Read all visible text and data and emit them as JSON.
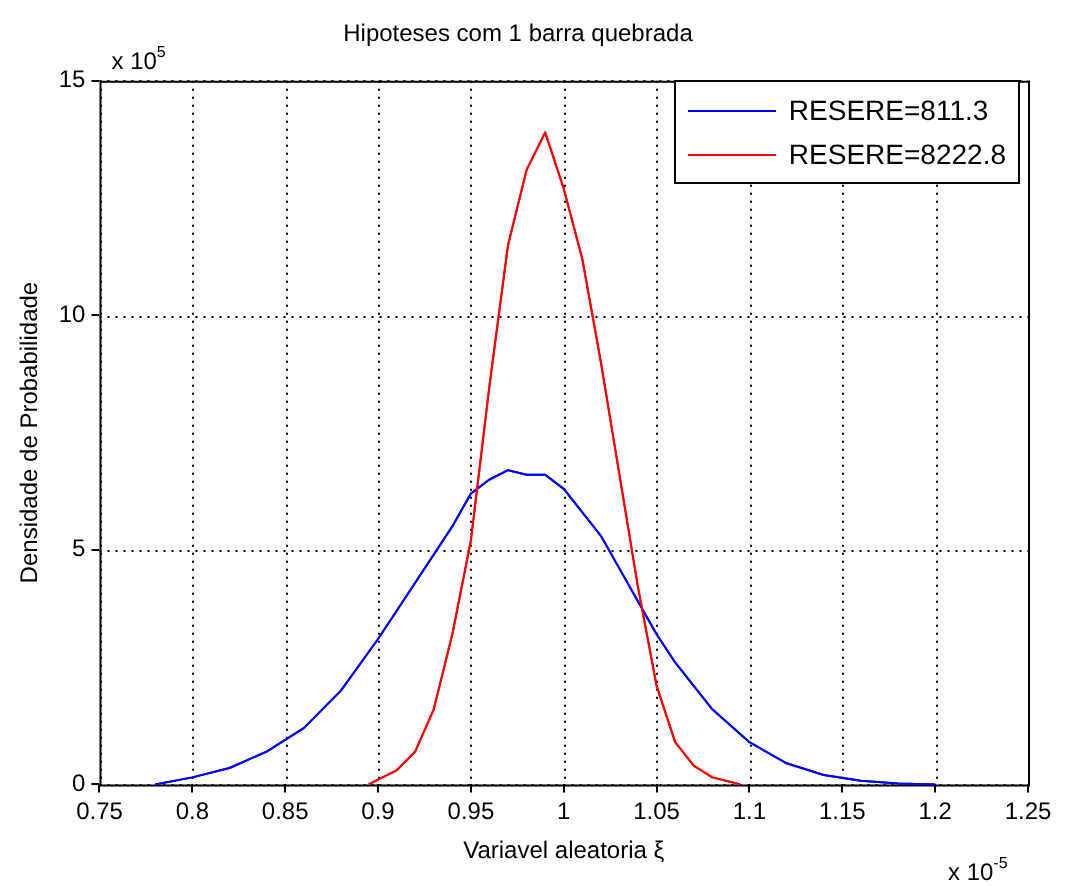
{
  "chart_data": {
    "type": "line",
    "title": "Hipoteses com 1 barra quebrada",
    "xlabel": "Variavel aleatoria ξ",
    "ylabel": "Densidade de Probabilidade",
    "annotations": [
      "x 10$^{5}$",
      "x 10$^{-5}$"
    ],
    "xlim": [
      0.75,
      1.25
    ],
    "xticks": [
      0.75,
      0.8,
      0.85,
      0.9,
      0.95,
      1,
      1.05,
      1.1,
      1.15,
      1.2,
      1.25
    ],
    "ylim": [
      0,
      15
    ],
    "yticks": [
      0,
      5,
      10,
      15
    ],
    "grid": true,
    "legend": "top right",
    "marker": "none",
    "line_style": "solid",
    "series": [
      {
        "name": "RESERE=811.3",
        "color": "#0000ff",
        "x": [
          0.78,
          0.8,
          0.82,
          0.84,
          0.86,
          0.88,
          0.9,
          0.92,
          0.94,
          0.95,
          0.96,
          0.97,
          0.98,
          0.99,
          1,
          1.01,
          1.02,
          1.03,
          1.04,
          1.05,
          1.06,
          1.07,
          1.08,
          1.1,
          1.12,
          1.14,
          1.16,
          1.18,
          1.2
        ],
        "values": [
          0,
          0.15,
          0.35,
          0.7,
          1.2,
          2,
          3.1,
          4.3,
          5.5,
          6.2,
          6.5,
          6.7,
          6.6,
          6.6,
          6.3,
          5.8,
          5.3,
          4.6,
          3.9,
          3.2,
          2.6,
          2.1,
          1.6,
          0.9,
          0.45,
          0.2,
          0.08,
          0.02,
          0
        ]
      },
      {
        "name": "RESERE=8222.8",
        "color": "#ff0000",
        "x": [
          0.895,
          0.9,
          0.91,
          0.92,
          0.93,
          0.94,
          0.95,
          0.96,
          0.97,
          0.98,
          0.99,
          1,
          1.01,
          1.02,
          1.03,
          1.04,
          1.05,
          1.06,
          1.07,
          1.08,
          1.09,
          1.095
        ],
        "values": [
          0,
          0.1,
          0.3,
          0.7,
          1.6,
          3.2,
          5.2,
          8.5,
          11.5,
          13.1,
          13.9,
          12.7,
          11.2,
          9,
          6.6,
          4.2,
          2.1,
          0.9,
          0.4,
          0.15,
          0.05,
          0
        ]
      }
    ]
  }
}
